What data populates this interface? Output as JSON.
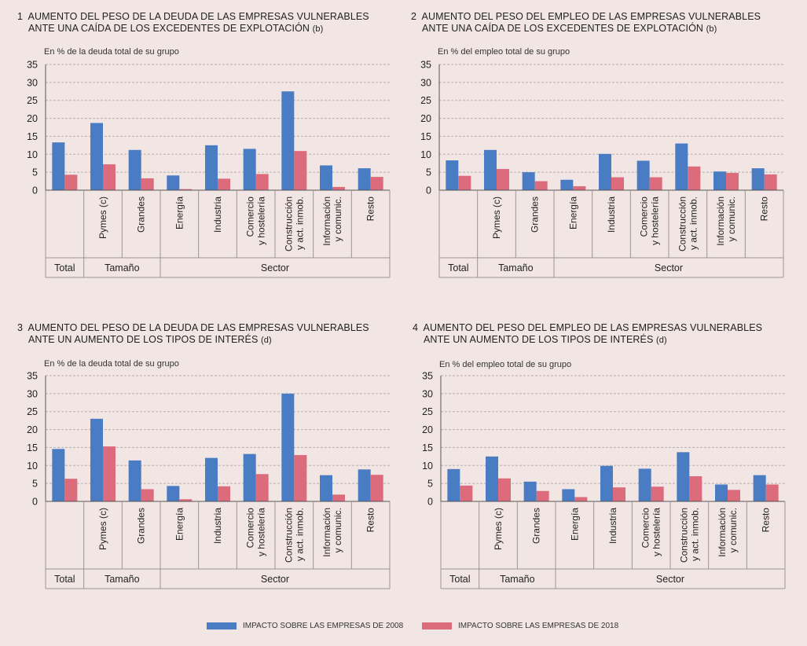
{
  "colors": {
    "s2008": "#4a7cc3",
    "s2018": "#dc6b7b",
    "grid": "#b5b0ae",
    "axis": "#555555"
  },
  "legend": {
    "s2008": "IMPACTO SOBRE LAS EMPRESAS DE 2008",
    "s2018": "IMPACTO SOBRE LAS EMPRESAS DE 2018"
  },
  "panels": [
    {
      "number": "1",
      "title_line1": "AUMENTO DEL PESO DE LA DEUDA DE LAS EMPRESAS VULNERABLES",
      "title_line2": "ANTE UNA CAÍDA DE LOS EXCEDENTES DE EXPLOTACIÓN",
      "title_note": "(b)",
      "unit": "En % de la deuda total de su grupo"
    },
    {
      "number": "2",
      "title_line1": "AUMENTO DEL PESO DEL EMPLEO DE LAS EMPRESAS VULNERABLES",
      "title_line2": "ANTE UNA CAÍDA DE LOS EXCEDENTES DE EXPLOTACIÓN",
      "title_note": "(b)",
      "unit": "En % del empleo total de su grupo"
    },
    {
      "number": "3",
      "title_line1": "AUMENTO DEL PESO DE LA DEUDA DE LAS EMPRESAS VULNERABLES",
      "title_line2": "ANTE UN AUMENTO DE LOS TIPOS DE INTERÉS",
      "title_note": "(d)",
      "unit": "En % de la deuda total de su grupo"
    },
    {
      "number": "4",
      "title_line1": "AUMENTO DEL PESO DEL EMPLEO DE LAS EMPRESAS VULNERABLES",
      "title_line2": "ANTE UN AUMENTO DE LOS TIPOS DE INTERÉS",
      "title_note": "(d)",
      "unit": "En % del empleo total de su grupo"
    }
  ],
  "chart_data": [
    {
      "type": "bar",
      "categories": [
        "",
        "Pymes (c)",
        "Grandes",
        "Energía",
        "Industria",
        "Comercio y hostelería",
        "Construcción y act. inmob.",
        "Información y comunic.",
        "Resto"
      ],
      "category_lines": [
        [
          ""
        ],
        [
          "Pymes (c)"
        ],
        [
          "Grandes"
        ],
        [
          "Energía"
        ],
        [
          "Industria"
        ],
        [
          "Comercio",
          "y hostelería"
        ],
        [
          "Construcción",
          "y act. inmob."
        ],
        [
          "Información",
          "y comunic."
        ],
        [
          "Resto"
        ]
      ],
      "groups": [
        {
          "label": "Total",
          "from": 0,
          "to": 0
        },
        {
          "label": "Tamaño",
          "from": 1,
          "to": 2
        },
        {
          "label": "Sector",
          "from": 3,
          "to": 8
        }
      ],
      "series": [
        {
          "name": "IMPACTO SOBRE LAS EMPRESAS DE 2008",
          "values": [
            13.3,
            18.7,
            11.2,
            4.1,
            12.5,
            11.5,
            27.5,
            6.9,
            6.1
          ]
        },
        {
          "name": "IMPACTO SOBRE LAS EMPRESAS DE 2018",
          "values": [
            4.3,
            7.2,
            3.3,
            0.3,
            3.2,
            4.5,
            10.9,
            0.9,
            3.7
          ]
        }
      ],
      "yticks": [
        0,
        5,
        10,
        15,
        20,
        25,
        30,
        35
      ],
      "ylim": [
        0,
        35
      ],
      "grid": true
    },
    {
      "type": "bar",
      "categories": [
        "",
        "Pymes (c)",
        "Grandes",
        "Energía",
        "Industria",
        "Comercio y hostelería",
        "Construcción y act. inmob.",
        "Información y comunic.",
        "Resto"
      ],
      "category_lines": [
        [
          ""
        ],
        [
          "Pymes (c)"
        ],
        [
          "Grandes"
        ],
        [
          "Energía"
        ],
        [
          "Industria"
        ],
        [
          "Comercio",
          "y hostelería"
        ],
        [
          "Construcción",
          "y act. inmob."
        ],
        [
          "Información",
          "y comunic."
        ],
        [
          "Resto"
        ]
      ],
      "groups": [
        {
          "label": "Total",
          "from": 0,
          "to": 0
        },
        {
          "label": "Tamaño",
          "from": 1,
          "to": 2
        },
        {
          "label": "Sector",
          "from": 3,
          "to": 8
        }
      ],
      "series": [
        {
          "name": "IMPACTO SOBRE LAS EMPRESAS DE 2008",
          "values": [
            8.3,
            11.2,
            5.0,
            2.9,
            10.1,
            8.2,
            13.0,
            5.2,
            6.1
          ]
        },
        {
          "name": "IMPACTO SOBRE LAS EMPRESAS DE 2018",
          "values": [
            4.0,
            5.9,
            2.5,
            1.1,
            3.6,
            3.6,
            6.6,
            4.8,
            4.4
          ]
        }
      ],
      "yticks": [
        0,
        5,
        10,
        15,
        20,
        25,
        30,
        35
      ],
      "ylim": [
        0,
        35
      ],
      "grid": true
    },
    {
      "type": "bar",
      "categories": [
        "",
        "Pymes (c)",
        "Grandes",
        "Energía",
        "Industria",
        "Comercio y hostelería",
        "Construcción y act. inmob.",
        "Información y comunic.",
        "Resto"
      ],
      "category_lines": [
        [
          ""
        ],
        [
          "Pymes (c)"
        ],
        [
          "Grandes"
        ],
        [
          "Energía"
        ],
        [
          "Industria"
        ],
        [
          "Comercio",
          "y hostelería"
        ],
        [
          "Construcción",
          "y act. inmob."
        ],
        [
          "Información",
          "y comunic."
        ],
        [
          "Resto"
        ]
      ],
      "groups": [
        {
          "label": "Total",
          "from": 0,
          "to": 0
        },
        {
          "label": "Tamaño",
          "from": 1,
          "to": 2
        },
        {
          "label": "Sector",
          "from": 3,
          "to": 8
        }
      ],
      "series": [
        {
          "name": "IMPACTO SOBRE LAS EMPRESAS DE 2008",
          "values": [
            14.6,
            23.0,
            11.4,
            4.3,
            12.1,
            13.2,
            30.0,
            7.3,
            8.9
          ]
        },
        {
          "name": "IMPACTO SOBRE LAS EMPRESAS DE 2018",
          "values": [
            6.3,
            15.3,
            3.4,
            0.6,
            4.2,
            7.6,
            12.9,
            1.9,
            7.4
          ]
        }
      ],
      "yticks": [
        0,
        5,
        10,
        15,
        20,
        25,
        30,
        35
      ],
      "ylim": [
        0,
        35
      ],
      "grid": true
    },
    {
      "type": "bar",
      "categories": [
        "",
        "Pymes (c)",
        "Grandes",
        "Energía",
        "Industria",
        "Comercio y hostelería",
        "Construcción y act. inmob.",
        "Información y comunic.",
        "Resto"
      ],
      "category_lines": [
        [
          ""
        ],
        [
          "Pymes (c)"
        ],
        [
          "Grandes"
        ],
        [
          "Energía"
        ],
        [
          "Industria"
        ],
        [
          "Comercio",
          "y hostelería"
        ],
        [
          "Construcción",
          "y act. inmob."
        ],
        [
          "Información",
          "y comunic."
        ],
        [
          "Resto"
        ]
      ],
      "groups": [
        {
          "label": "Total",
          "from": 0,
          "to": 0
        },
        {
          "label": "Tamaño",
          "from": 1,
          "to": 2
        },
        {
          "label": "Sector",
          "from": 3,
          "to": 8
        }
      ],
      "series": [
        {
          "name": "IMPACTO SOBRE LAS EMPRESAS DE 2008",
          "values": [
            9.0,
            12.5,
            5.5,
            3.4,
            9.9,
            9.1,
            13.7,
            4.7,
            7.3
          ]
        },
        {
          "name": "IMPACTO SOBRE LAS EMPRESAS DE 2018",
          "values": [
            4.4,
            6.4,
            2.9,
            1.2,
            3.9,
            4.1,
            7.0,
            3.2,
            4.7
          ]
        }
      ],
      "yticks": [
        0,
        5,
        10,
        15,
        20,
        25,
        30,
        35
      ],
      "ylim": [
        0,
        35
      ],
      "grid": true
    }
  ]
}
